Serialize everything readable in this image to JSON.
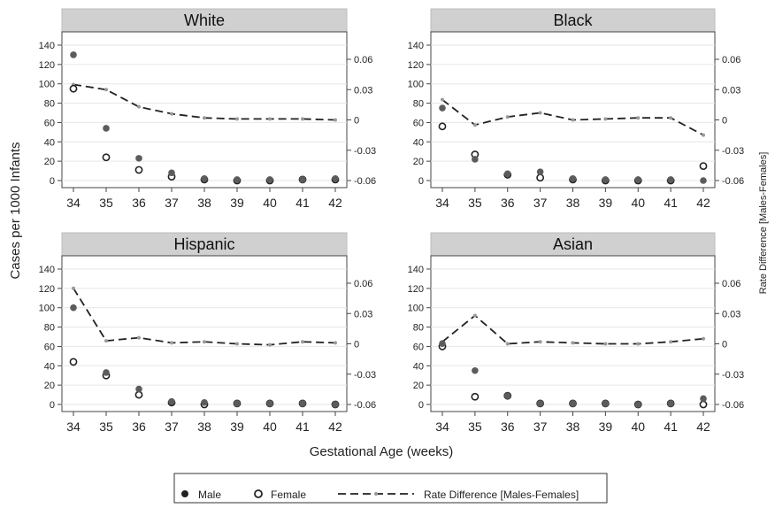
{
  "figure": {
    "ylabel_left": "Cases per 1000 Infants",
    "ylabel_right": "Rate Difference [Males-Females]",
    "xlabel": "Gestational Age (weeks)"
  },
  "legend": {
    "male": "Male",
    "female": "Female",
    "rate_diff": "Rate Difference [Males-Females]"
  },
  "colors": {
    "male_fill": "#5c5c5c",
    "female_stroke": "#222222",
    "rate_line": "#222222",
    "rate_marker": "#999999",
    "panel_header": "#d0d0d0",
    "grid": "#e6e6e6"
  },
  "chart_data": [
    {
      "type": "scatter",
      "title": "White",
      "x": [
        34,
        35,
        36,
        37,
        38,
        39,
        40,
        41,
        42
      ],
      "ylim": [
        0,
        150
      ],
      "y2lim": [
        -0.06,
        0.06
      ],
      "yticks": [
        0,
        20,
        40,
        60,
        80,
        100,
        120,
        140
      ],
      "y2ticks": [
        "-0.06",
        "-0.03",
        "0",
        "0.03",
        "0.06"
      ],
      "grid": true,
      "series": [
        {
          "name": "Male",
          "axis": "left",
          "values": [
            130,
            54,
            23,
            8,
            2,
            1,
            1,
            1,
            2
          ]
        },
        {
          "name": "Female",
          "axis": "left",
          "values": [
            95,
            24,
            11,
            4,
            1,
            0,
            0,
            1,
            1
          ]
        },
        {
          "name": "Rate Difference [Males-Females]",
          "axis": "right",
          "values": [
            0.035,
            0.03,
            0.013,
            0.006,
            0.002,
            0.001,
            0.001,
            0.001,
            0.0
          ]
        }
      ]
    },
    {
      "type": "scatter",
      "title": "Black",
      "x": [
        34,
        35,
        36,
        37,
        38,
        39,
        40,
        41,
        42
      ],
      "ylim": [
        0,
        150
      ],
      "y2lim": [
        -0.06,
        0.06
      ],
      "yticks": [
        0,
        20,
        40,
        60,
        80,
        100,
        120,
        140
      ],
      "y2ticks": [
        "-0.06",
        "-0.03",
        "0",
        "0.03",
        "0.06"
      ],
      "grid": true,
      "series": [
        {
          "name": "Male",
          "axis": "left",
          "values": [
            75,
            22,
            7,
            9,
            2,
            1,
            1,
            1,
            0
          ]
        },
        {
          "name": "Female",
          "axis": "left",
          "values": [
            56,
            27,
            6,
            3,
            1,
            0,
            0,
            0,
            15
          ]
        },
        {
          "name": "Rate Difference [Males-Females]",
          "axis": "right",
          "values": [
            0.02,
            -0.005,
            0.003,
            0.007,
            0.0,
            0.001,
            0.002,
            0.002,
            -0.015
          ]
        }
      ]
    },
    {
      "type": "scatter",
      "title": "Hispanic",
      "x": [
        34,
        35,
        36,
        37,
        38,
        39,
        40,
        41,
        42
      ],
      "ylim": [
        0,
        150
      ],
      "y2lim": [
        -0.06,
        0.06
      ],
      "yticks": [
        0,
        20,
        40,
        60,
        80,
        100,
        120,
        140
      ],
      "y2ticks": [
        "-0.06",
        "-0.03",
        "0",
        "0.03",
        "0.06"
      ],
      "grid": true,
      "series": [
        {
          "name": "Male",
          "axis": "left",
          "values": [
            100,
            33,
            16,
            3,
            2,
            1,
            1,
            1,
            0
          ]
        },
        {
          "name": "Female",
          "axis": "left",
          "values": [
            44,
            30,
            10,
            2,
            0,
            1,
            1,
            1,
            0
          ]
        },
        {
          "name": "Rate Difference [Males-Females]",
          "axis": "right",
          "values": [
            0.055,
            0.003,
            0.006,
            0.001,
            0.002,
            0.0,
            -0.001,
            0.002,
            0.001
          ]
        }
      ]
    },
    {
      "type": "scatter",
      "title": "Asian",
      "x": [
        34,
        35,
        36,
        37,
        38,
        39,
        40,
        41,
        42
      ],
      "ylim": [
        0,
        150
      ],
      "y2lim": [
        -0.06,
        0.06
      ],
      "yticks": [
        0,
        20,
        40,
        60,
        80,
        100,
        120,
        140
      ],
      "y2ticks": [
        "-0.06",
        "-0.03",
        "0",
        "0.03",
        "0.06"
      ],
      "grid": true,
      "series": [
        {
          "name": "Male",
          "axis": "left",
          "values": [
            63,
            35,
            9,
            1,
            1,
            1,
            0,
            1,
            6
          ]
        },
        {
          "name": "Female",
          "axis": "left",
          "values": [
            60,
            8,
            9,
            1,
            1,
            1,
            0,
            1,
            0
          ]
        },
        {
          "name": "Rate Difference [Males-Females]",
          "axis": "right",
          "values": [
            0.002,
            0.028,
            0.0,
            0.002,
            0.001,
            0.0,
            0.0,
            0.002,
            0.005
          ]
        }
      ]
    }
  ]
}
